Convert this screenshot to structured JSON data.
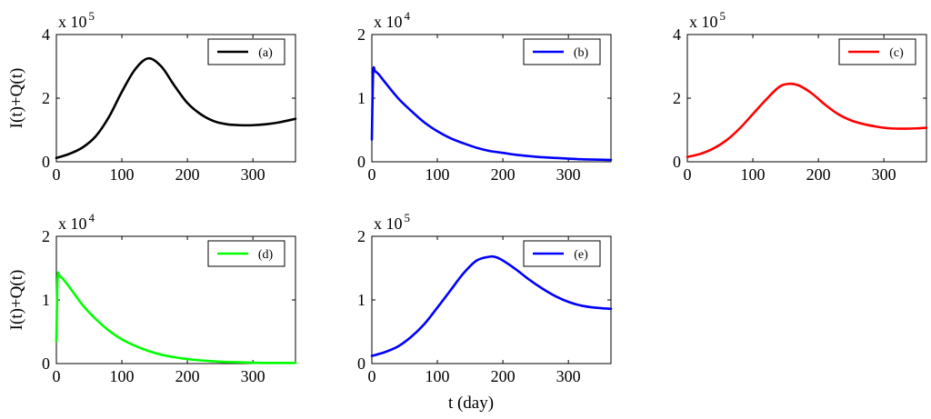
{
  "figure": {
    "ylabel": "I(t)+Q(t)",
    "xlabel": "t (day)"
  },
  "chart_data": [
    {
      "type": "line",
      "legend": "(a)",
      "color": "#000000",
      "xlim": [
        0,
        365
      ],
      "ylim": [
        0,
        4
      ],
      "y_multiplier": "x 10",
      "y_exponent": "5",
      "xticks": [
        "0",
        "100",
        "200",
        "300"
      ],
      "yticks": [
        "0",
        "2",
        "4"
      ],
      "x": [
        0,
        20,
        40,
        60,
        80,
        100,
        120,
        140,
        160,
        180,
        200,
        220,
        240,
        260,
        280,
        300,
        320,
        340,
        365
      ],
      "y": [
        0.12,
        0.25,
        0.45,
        0.8,
        1.4,
        2.2,
        2.9,
        3.25,
        3.0,
        2.4,
        1.85,
        1.5,
        1.28,
        1.18,
        1.15,
        1.15,
        1.18,
        1.24,
        1.35
      ]
    },
    {
      "type": "line",
      "legend": "(b)",
      "color": "#0000ff",
      "xlim": [
        0,
        365
      ],
      "ylim": [
        0,
        2
      ],
      "y_multiplier": "x 10",
      "y_exponent": "4",
      "xticks": [
        "0",
        "100",
        "200",
        "300"
      ],
      "yticks": [
        "0",
        "1",
        "2"
      ],
      "x": [
        0,
        2,
        5,
        10,
        20,
        40,
        60,
        80,
        100,
        120,
        140,
        160,
        180,
        200,
        220,
        250,
        280,
        320,
        365
      ],
      "y": [
        0.35,
        1.4,
        1.42,
        1.38,
        1.25,
        1.0,
        0.8,
        0.62,
        0.48,
        0.37,
        0.29,
        0.22,
        0.17,
        0.14,
        0.11,
        0.08,
        0.06,
        0.04,
        0.03
      ]
    },
    {
      "type": "line",
      "legend": "(c)",
      "color": "#ff0000",
      "xlim": [
        0,
        365
      ],
      "ylim": [
        0,
        4
      ],
      "y_multiplier": "x 10",
      "y_exponent": "5",
      "xticks": [
        "0",
        "100",
        "200",
        "300"
      ],
      "yticks": [
        "0",
        "2",
        "4"
      ],
      "x": [
        0,
        20,
        40,
        60,
        80,
        100,
        120,
        140,
        155,
        170,
        190,
        210,
        230,
        250,
        270,
        290,
        310,
        330,
        350,
        365
      ],
      "y": [
        0.15,
        0.25,
        0.42,
        0.68,
        1.05,
        1.5,
        1.95,
        2.35,
        2.45,
        2.4,
        2.15,
        1.8,
        1.5,
        1.3,
        1.18,
        1.1,
        1.05,
        1.04,
        1.05,
        1.07
      ]
    },
    {
      "type": "line",
      "legend": "(d)",
      "color": "#00ff00",
      "xlim": [
        0,
        365
      ],
      "ylim": [
        0,
        2
      ],
      "y_multiplier": "x 10",
      "y_exponent": "4",
      "xticks": [
        "0",
        "100",
        "200",
        "300"
      ],
      "yticks": [
        "0",
        "1",
        "2"
      ],
      "x": [
        0,
        2,
        5,
        10,
        20,
        40,
        60,
        80,
        100,
        120,
        140,
        160,
        180,
        200,
        220,
        250,
        280,
        320,
        365
      ],
      "y": [
        0.35,
        1.35,
        1.37,
        1.33,
        1.2,
        0.92,
        0.7,
        0.52,
        0.38,
        0.28,
        0.2,
        0.14,
        0.1,
        0.07,
        0.05,
        0.03,
        0.02,
        0.01,
        0.01
      ]
    },
    {
      "type": "line",
      "legend": "(e)",
      "color": "#0000ff",
      "xlim": [
        0,
        365
      ],
      "ylim": [
        0,
        2
      ],
      "y_multiplier": "x 10",
      "y_exponent": "5",
      "xticks": [
        "0",
        "100",
        "200",
        "300"
      ],
      "yticks": [
        "0",
        "1",
        "2"
      ],
      "x": [
        0,
        20,
        40,
        60,
        80,
        100,
        120,
        140,
        160,
        180,
        190,
        200,
        220,
        240,
        260,
        280,
        300,
        320,
        340,
        365
      ],
      "y": [
        0.12,
        0.18,
        0.27,
        0.42,
        0.62,
        0.88,
        1.15,
        1.42,
        1.62,
        1.68,
        1.67,
        1.62,
        1.48,
        1.32,
        1.18,
        1.06,
        0.97,
        0.91,
        0.88,
        0.86
      ]
    }
  ]
}
